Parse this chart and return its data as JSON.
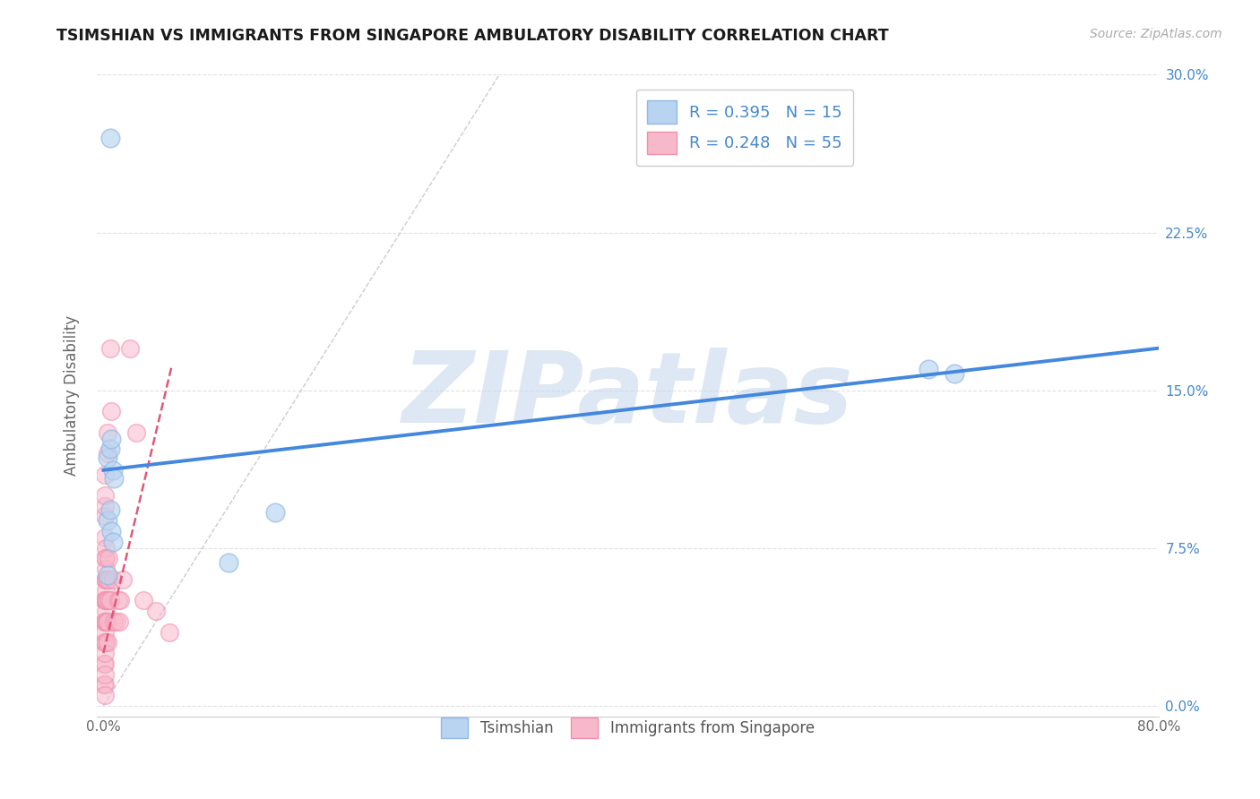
{
  "title": "TSIMSHIAN VS IMMIGRANTS FROM SINGAPORE AMBULATORY DISABILITY CORRELATION CHART",
  "source": "Source: ZipAtlas.com",
  "ylabel": "Ambulatory Disability",
  "watermark": "ZIPatlas",
  "series1_name": "Tsimshian",
  "series1_color": "#b8d4f0",
  "series1_edge_color": "#90b8e8",
  "series1_R": 0.395,
  "series1_N": 15,
  "series1_x": [
    0.003,
    0.005,
    0.006,
    0.007,
    0.008,
    0.003,
    0.005,
    0.006,
    0.007,
    0.625,
    0.645,
    0.003,
    0.005,
    0.095,
    0.13
  ],
  "series1_y": [
    0.118,
    0.122,
    0.127,
    0.112,
    0.108,
    0.088,
    0.093,
    0.083,
    0.078,
    0.16,
    0.158,
    0.062,
    0.27,
    0.068,
    0.092
  ],
  "series1_trend_x": [
    0.0,
    0.8
  ],
  "series1_trend_y": [
    0.112,
    0.17
  ],
  "series2_name": "Immigrants from Singapore",
  "series2_color": "#f8b8cc",
  "series2_edge_color": "#f090a8",
  "series2_R": 0.248,
  "series2_N": 55,
  "series2_x": [
    0.0005,
    0.0005,
    0.0005,
    0.0005,
    0.0005,
    0.001,
    0.001,
    0.001,
    0.001,
    0.001,
    0.001,
    0.001,
    0.001,
    0.001,
    0.001,
    0.001,
    0.001,
    0.001,
    0.001,
    0.001,
    0.001,
    0.0015,
    0.0015,
    0.0015,
    0.0015,
    0.002,
    0.002,
    0.002,
    0.002,
    0.002,
    0.0025,
    0.0025,
    0.0025,
    0.003,
    0.003,
    0.003,
    0.003,
    0.004,
    0.004,
    0.004,
    0.005,
    0.005,
    0.006,
    0.007,
    0.008,
    0.01,
    0.011,
    0.012,
    0.013,
    0.015,
    0.02,
    0.025,
    0.03,
    0.04,
    0.05
  ],
  "series2_y": [
    0.01,
    0.02,
    0.03,
    0.04,
    0.05,
    0.01,
    0.02,
    0.03,
    0.04,
    0.05,
    0.06,
    0.07,
    0.08,
    0.09,
    0.095,
    0.1,
    0.11,
    0.005,
    0.015,
    0.025,
    0.035,
    0.045,
    0.055,
    0.065,
    0.075,
    0.03,
    0.04,
    0.05,
    0.06,
    0.07,
    0.04,
    0.05,
    0.06,
    0.04,
    0.12,
    0.03,
    0.13,
    0.05,
    0.07,
    0.06,
    0.05,
    0.17,
    0.14,
    0.06,
    0.04,
    0.04,
    0.05,
    0.04,
    0.05,
    0.06,
    0.17,
    0.13,
    0.05,
    0.045,
    0.035
  ],
  "series2_trend_x": [
    0.0,
    0.052
  ],
  "series2_trend_y": [
    0.025,
    0.162
  ],
  "ref_line_x": [
    0.0,
    0.3
  ],
  "ref_line_y": [
    0.0,
    0.3
  ],
  "xlim": [
    -0.005,
    0.8
  ],
  "ylim": [
    -0.005,
    0.3
  ],
  "xticks": [
    0.0,
    0.1,
    0.2,
    0.3,
    0.4,
    0.5,
    0.6,
    0.7,
    0.8
  ],
  "xticklabels_show": [
    "0.0%",
    "",
    "",
    "",
    "",
    "",
    "",
    "",
    "80.0%"
  ],
  "yticks": [
    0.0,
    0.075,
    0.15,
    0.225,
    0.3
  ],
  "yticklabels": [
    "0.0%",
    "7.5%",
    "15.0%",
    "22.5%",
    "30.0%"
  ],
  "title_color": "#1a1a1a",
  "grid_color": "#e0e0e0",
  "trend_blue_color": "#4488dd",
  "trend_pink_color": "#e05878",
  "watermark_color": "#c8d8ee",
  "legend_text_color": "#4488cc"
}
